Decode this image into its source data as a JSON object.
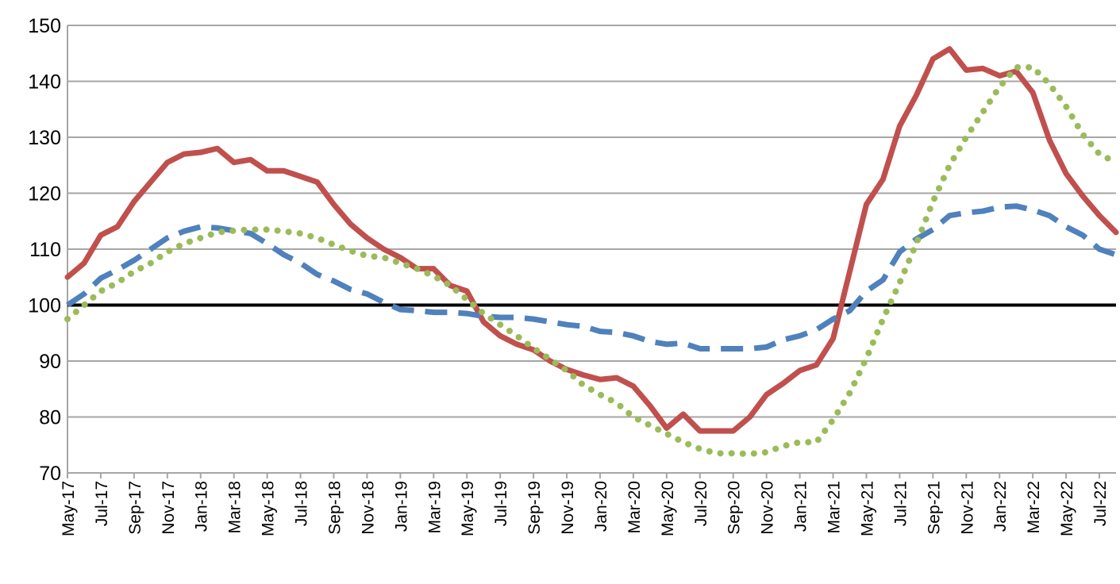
{
  "chart_data": {
    "type": "line",
    "categories": [
      "May-17",
      null,
      "Jul-17",
      null,
      "Sep-17",
      null,
      "Nov-17",
      null,
      "Jan-18",
      null,
      "Mar-18",
      null,
      "May-18",
      null,
      "Jul-18",
      null,
      "Sep-18",
      null,
      "Nov-18",
      null,
      "Jan-19",
      null,
      "Mar-19",
      null,
      "May-19",
      null,
      "Jul-19",
      null,
      "Sep-19",
      null,
      "Nov-19",
      null,
      "Jan-20",
      null,
      "Mar-20",
      null,
      "May-20",
      null,
      "Jul-20",
      null,
      "Sep-20",
      null,
      "Nov-20",
      null,
      "Jan-21",
      null,
      "Mar-21",
      null,
      "May-21",
      null,
      "Jul-21",
      null,
      "Sep-21",
      null,
      "Nov-21",
      null,
      "Jan-22",
      null,
      "Mar-22",
      null,
      "May-22",
      null,
      "Jul-22",
      null
    ],
    "series": [
      {
        "color": "#c0504d",
        "style": "solid",
        "values": [
          105,
          107.5,
          112.5,
          114,
          118.5,
          122,
          125.5,
          127,
          127.3,
          128,
          125.5,
          126,
          124,
          124,
          123,
          122,
          118,
          114.5,
          112,
          110,
          108.5,
          106.5,
          106.5,
          103.5,
          102.5,
          97,
          94.5,
          93,
          92,
          90,
          88.5,
          87.5,
          86.7,
          87,
          85.5,
          82,
          78,
          80.5,
          77.5,
          77.5,
          77.5,
          80,
          84,
          86,
          88.3,
          89.3,
          94,
          106,
          118,
          122.5,
          132,
          137.5,
          144,
          145.8,
          142,
          142.3,
          141,
          141.8,
          138,
          129.5,
          123.5,
          119.5,
          116,
          113
        ]
      },
      {
        "color": "#4f81bd",
        "style": "dashed",
        "values": [
          100,
          102,
          104.8,
          106.3,
          108,
          110,
          112,
          113.2,
          114,
          113.8,
          113.3,
          112.8,
          111,
          109,
          107.5,
          105.5,
          104.3,
          102.8,
          102,
          100.5,
          99.2,
          99,
          98.7,
          98.7,
          98.5,
          98,
          97.8,
          97.8,
          97.5,
          97,
          96.5,
          96.2,
          95.3,
          95.1,
          94.5,
          93.5,
          93,
          93.2,
          92.2,
          92.2,
          92.2,
          92.2,
          92.5,
          93.8,
          94.5,
          95.6,
          97.5,
          99,
          102.5,
          104.5,
          109.5,
          111.8,
          113.5,
          116,
          116.5,
          116.8,
          117.5,
          117.7,
          117,
          116,
          114,
          112.5,
          110,
          109
        ]
      },
      {
        "color": "#9bbb59",
        "style": "dotted",
        "values": [
          97.5,
          100,
          102.5,
          104,
          106,
          107.5,
          109.5,
          111,
          112,
          113,
          113.3,
          113.5,
          113.5,
          113.2,
          112.8,
          112,
          110.8,
          109.7,
          108.8,
          108.5,
          107.5,
          106.5,
          105.2,
          103.5,
          101,
          98.5,
          96.5,
          94.5,
          92.3,
          90.3,
          88.3,
          85.7,
          84,
          82.5,
          80,
          78.5,
          77,
          75.5,
          74.3,
          73.5,
          73.5,
          73.4,
          73.7,
          74.8,
          75.5,
          75.5,
          79.5,
          84.3,
          90.5,
          97.5,
          104,
          111,
          118.5,
          125,
          130,
          134.5,
          139,
          142.5,
          142.5,
          139.5,
          135.5,
          130.5,
          127,
          125.5
        ]
      }
    ],
    "ylim": [
      70,
      150
    ],
    "yticks": [
      70,
      80,
      90,
      100,
      110,
      120,
      130,
      140,
      150
    ],
    "grid": true,
    "reference_line": 100
  }
}
